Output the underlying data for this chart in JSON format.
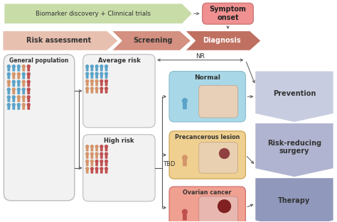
{
  "bg_color": "#ffffff",
  "top_banner_text": "Biomarker discovery + Clinnical trials",
  "top_banner_color": "#c8dca8",
  "symptom_box_color": "#f09090",
  "symptom_box_text": "Symptom\nonset",
  "risk_color": "#e8c0b0",
  "screening_color": "#d49080",
  "diagnosis_color": "#c07060",
  "general_pop_text": "General population",
  "avg_risk_text": "Average risk",
  "high_risk_text": "High risk",
  "nr_text": "NR",
  "tbd_text": "TBD",
  "normal_text": "Normal",
  "precancerous_text": "Precancerous lesion",
  "ovarian_text": "Ovarian cancer",
  "prevention_text": "Prevention",
  "risk_reducing_text": "Risk-reducing\nsurgery",
  "therapy_text": "Therapy",
  "normal_box_color": "#a8d8e8",
  "precancerous_box_color": "#f0d090",
  "ovarian_box_color": "#f0a090",
  "chev1_color": "#c8cce0",
  "chev2_color": "#b0b4d0",
  "chev3_color": "#9098bc",
  "person_blue": "#5ba3c9",
  "person_tan": "#d4956a",
  "person_red": "#c05050",
  "arrow_color": "#555555",
  "text_color": "#333333",
  "box_bg": "#f2f2f2",
  "box_border": "#bbbbbb"
}
